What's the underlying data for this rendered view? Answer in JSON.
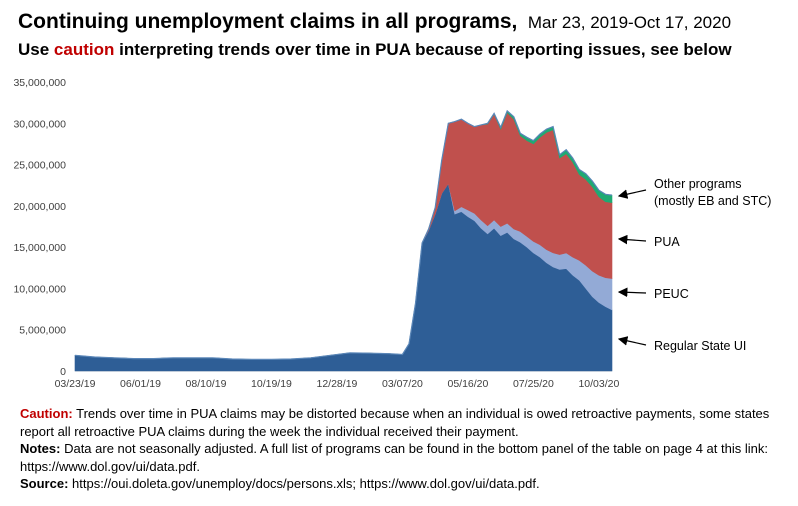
{
  "header": {
    "title": "Continuing unemployment claims in all programs,",
    "date_range": "Mar 23, 2019-Oct 17, 2020",
    "subtitle_pre": "Use",
    "subtitle_highlight": "caution",
    "subtitle_post": "interpreting trends over time in PUA because of reporting issues, see below"
  },
  "colors": {
    "regular_state_ui": "#2e5e96",
    "peuc": "#93aad6",
    "pua": "#c0504d",
    "other_programs": "#1faa73",
    "caution_text": "#c00000"
  },
  "chart_data": {
    "type": "area",
    "stacked": true,
    "title": "",
    "xlabel": "",
    "ylabel": "",
    "ylim": [
      0,
      35000000
    ],
    "yticks": [
      0,
      5000000,
      10000000,
      15000000,
      20000000,
      25000000,
      30000000,
      35000000
    ],
    "ytick_labels": [
      "0",
      "5,000,000",
      "10,000,000",
      "15,000,000",
      "20,000,000",
      "25,000,000",
      "30,000,000",
      "35,000,000"
    ],
    "xlim": [
      "2019-03-23",
      "2020-10-17"
    ],
    "xtick_labels": [
      "03/23/19",
      "06/01/19",
      "08/10/19",
      "10/19/19",
      "12/28/19",
      "03/07/20",
      "05/16/20",
      "07/25/20",
      "10/03/20"
    ],
    "grid": false,
    "x": [
      "2019-03-23",
      "2019-04-13",
      "2019-05-04",
      "2019-05-25",
      "2019-06-15",
      "2019-07-06",
      "2019-07-27",
      "2019-08-17",
      "2019-09-07",
      "2019-09-28",
      "2019-10-19",
      "2019-11-09",
      "2019-11-30",
      "2019-12-21",
      "2020-01-11",
      "2020-02-01",
      "2020-02-22",
      "2020-03-07",
      "2020-03-14",
      "2020-03-21",
      "2020-03-28",
      "2020-04-04",
      "2020-04-11",
      "2020-04-18",
      "2020-04-25",
      "2020-05-02",
      "2020-05-09",
      "2020-05-16",
      "2020-05-23",
      "2020-05-30",
      "2020-06-06",
      "2020-06-13",
      "2020-06-20",
      "2020-06-27",
      "2020-07-04",
      "2020-07-11",
      "2020-07-18",
      "2020-07-25",
      "2020-08-01",
      "2020-08-08",
      "2020-08-15",
      "2020-08-22",
      "2020-08-29",
      "2020-09-05",
      "2020-09-12",
      "2020-09-19",
      "2020-09-26",
      "2020-10-03",
      "2020-10-10",
      "2020-10-17"
    ],
    "series": [
      {
        "name": "Regular State UI",
        "values": [
          1900000,
          1700000,
          1600000,
          1500000,
          1500000,
          1600000,
          1600000,
          1600000,
          1450000,
          1400000,
          1400000,
          1450000,
          1600000,
          1900000,
          2200000,
          2150000,
          2100000,
          2000000,
          3300000,
          8200000,
          15500000,
          17000000,
          19000000,
          21500000,
          22700000,
          19000000,
          19300000,
          18700000,
          18200000,
          17300000,
          16600000,
          17300000,
          16400000,
          16800000,
          16000000,
          15600000,
          15000000,
          14300000,
          13800000,
          13100000,
          12600000,
          12300000,
          12400000,
          11600000,
          11000000,
          10000000,
          9000000,
          8300000,
          7800000,
          7400000
        ]
      },
      {
        "name": "PEUC",
        "values": [
          0,
          0,
          0,
          0,
          0,
          0,
          0,
          0,
          0,
          0,
          0,
          0,
          0,
          0,
          0,
          0,
          0,
          0,
          0,
          0,
          0,
          0,
          0,
          0,
          0,
          400000,
          600000,
          800000,
          900000,
          1000000,
          1000000,
          1000000,
          1100000,
          1100000,
          1200000,
          1300000,
          1300000,
          1400000,
          1500000,
          1600000,
          1700000,
          1800000,
          1900000,
          2200000,
          2400000,
          2800000,
          3100000,
          3300000,
          3500000,
          3800000
        ]
      },
      {
        "name": "PUA",
        "values": [
          0,
          0,
          0,
          0,
          0,
          0,
          0,
          0,
          0,
          0,
          0,
          0,
          0,
          0,
          0,
          0,
          0,
          0,
          0,
          0,
          0,
          200000,
          800000,
          4000000,
          7300000,
          10800000,
          10600000,
          10500000,
          10500000,
          11500000,
          12300000,
          12800000,
          11800000,
          13400000,
          13300000,
          11600000,
          11600000,
          11800000,
          13000000,
          14200000,
          14900000,
          11700000,
          12000000,
          11500000,
          10400000,
          10400000,
          10200000,
          9500000,
          9200000,
          9200000
        ]
      },
      {
        "name": "Other programs (mostly EB and STC)",
        "values": [
          0,
          0,
          0,
          0,
          0,
          0,
          0,
          0,
          0,
          0,
          0,
          0,
          0,
          0,
          0,
          0,
          0,
          0,
          0,
          0,
          0,
          0,
          0,
          0,
          0,
          0,
          0,
          0,
          0,
          0,
          100000,
          100000,
          200000,
          200000,
          300000,
          300000,
          400000,
          400000,
          400000,
          400000,
          400000,
          400000,
          500000,
          500000,
          600000,
          700000,
          700000,
          800000,
          900000,
          900000
        ]
      }
    ],
    "annotations": {
      "other": [
        "Other programs",
        "(mostly EB and STC)"
      ],
      "pua": "PUA",
      "peuc": "PEUC",
      "regular": "Regular State UI"
    }
  },
  "footer": {
    "caution_label": "Caution:",
    "caution_text": "Trends over time in PUA claims may be distorted because when an individual is owed retroactive payments, some states report all retroactive PUA claims during the week the individual received their payment.",
    "notes_label": "Notes:",
    "notes_text": "Data are not seasonally adjusted. A full list of programs can be found in the bottom panel of the table on page 4 at this link: https://www.dol.gov/ui/data.pdf.",
    "source_label": "Source:",
    "source_text": "https://oui.doleta.gov/unemploy/docs/persons.xls; https://www.dol.gov/ui/data.pdf."
  }
}
